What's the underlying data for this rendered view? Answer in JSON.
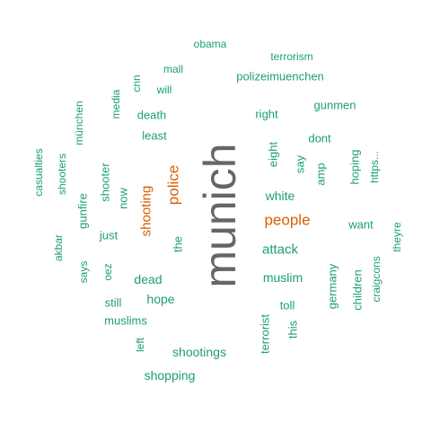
{
  "colors": {
    "top": "#666666",
    "high": "#d95f02",
    "normal": "#1b9e77"
  },
  "words": [
    {
      "text": "munich",
      "tier": "top"
    },
    {
      "text": "people",
      "tier": "high"
    },
    {
      "text": "police",
      "tier": "high"
    },
    {
      "text": "shooting",
      "tier": "high"
    },
    {
      "text": "obama",
      "tier": "normal"
    },
    {
      "text": "terrorism",
      "tier": "normal"
    },
    {
      "text": "mall",
      "tier": "normal"
    },
    {
      "text": "cnn",
      "tier": "normal"
    },
    {
      "text": "will",
      "tier": "normal"
    },
    {
      "text": "polizeimuenchen",
      "tier": "normal"
    },
    {
      "text": "media",
      "tier": "normal"
    },
    {
      "text": "münchen",
      "tier": "normal"
    },
    {
      "text": "gunmen",
      "tier": "normal"
    },
    {
      "text": "right",
      "tier": "normal"
    },
    {
      "text": "death",
      "tier": "normal"
    },
    {
      "text": "least",
      "tier": "normal"
    },
    {
      "text": "dont",
      "tier": "normal"
    },
    {
      "text": "eight",
      "tier": "normal"
    },
    {
      "text": "say",
      "tier": "normal"
    },
    {
      "text": "casualties",
      "tier": "normal"
    },
    {
      "text": "shooters",
      "tier": "normal"
    },
    {
      "text": "shooter",
      "tier": "normal"
    },
    {
      "text": "amp",
      "tier": "normal"
    },
    {
      "text": "hoping",
      "tier": "normal"
    },
    {
      "text": "https...",
      "tier": "normal"
    },
    {
      "text": "white",
      "tier": "normal"
    },
    {
      "text": "gunfire",
      "tier": "normal"
    },
    {
      "text": "now",
      "tier": "normal"
    },
    {
      "text": "want",
      "tier": "normal"
    },
    {
      "text": "just",
      "tier": "normal"
    },
    {
      "text": "the",
      "tier": "normal"
    },
    {
      "text": "theyre",
      "tier": "normal"
    },
    {
      "text": "akbar",
      "tier": "normal"
    },
    {
      "text": "attack",
      "tier": "normal"
    },
    {
      "text": "craigcons",
      "tier": "normal"
    },
    {
      "text": "says",
      "tier": "normal"
    },
    {
      "text": "oez",
      "tier": "normal"
    },
    {
      "text": "dead",
      "tier": "normal"
    },
    {
      "text": "germany",
      "tier": "normal"
    },
    {
      "text": "children",
      "tier": "normal"
    },
    {
      "text": "muslim",
      "tier": "normal"
    },
    {
      "text": "hope",
      "tier": "normal"
    },
    {
      "text": "still",
      "tier": "normal"
    },
    {
      "text": "toll",
      "tier": "normal"
    },
    {
      "text": "muslims",
      "tier": "normal"
    },
    {
      "text": "terrorist",
      "tier": "normal"
    },
    {
      "text": "this",
      "tier": "normal"
    },
    {
      "text": "left",
      "tier": "normal"
    },
    {
      "text": "shootings",
      "tier": "normal"
    },
    {
      "text": "shopping",
      "tier": "normal"
    }
  ]
}
